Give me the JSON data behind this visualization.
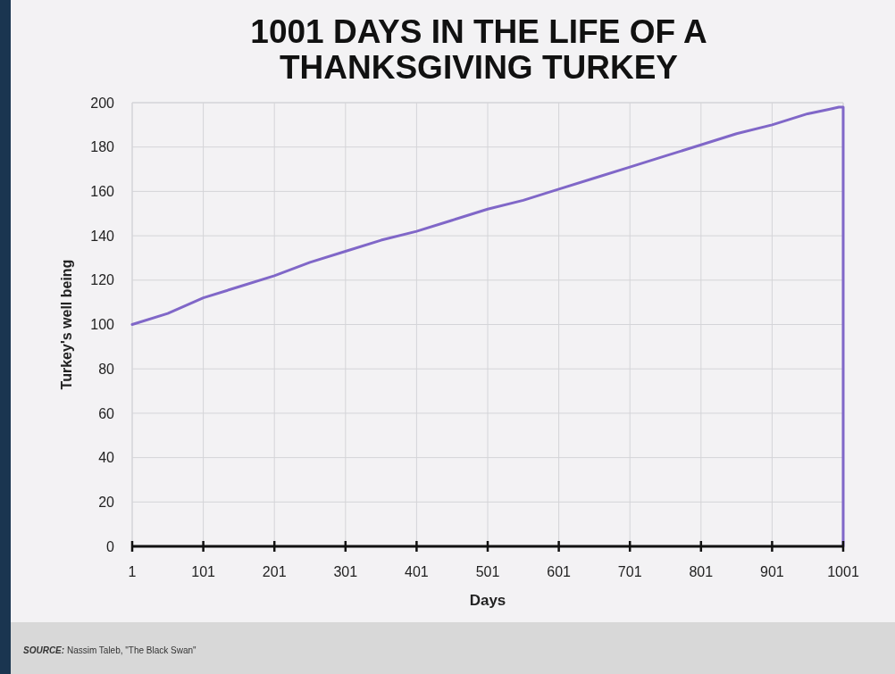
{
  "chart_data": {
    "type": "line",
    "title": "1001 DAYS IN THE LIFE OF A THANKSGIVING TURKEY",
    "xlabel": "Days",
    "ylabel": "Turkey's well being",
    "x": [
      1,
      51,
      101,
      151,
      201,
      251,
      301,
      351,
      401,
      451,
      501,
      551,
      601,
      651,
      701,
      751,
      801,
      851,
      901,
      951,
      981,
      995,
      1001,
      1001
    ],
    "series": [
      {
        "color": "#8067c8",
        "values": [
          100,
          105,
          112,
          117,
          122,
          128,
          133,
          138,
          142,
          147,
          152,
          156,
          161,
          166,
          171,
          176,
          181,
          186,
          190,
          195,
          197,
          198,
          198,
          0
        ]
      }
    ],
    "xlim": [
      1,
      1001
    ],
    "xticks": [
      1,
      101,
      201,
      301,
      401,
      501,
      601,
      701,
      801,
      901,
      1001
    ],
    "ylim": [
      0,
      200
    ],
    "yticks": [
      0,
      20,
      40,
      60,
      80,
      100,
      120,
      140,
      160,
      180,
      200
    ],
    "grid": true,
    "marker": "none",
    "line_style": "solid",
    "annotations": [
      "SOURCE: Nassim Taleb, \"The Black Swan\""
    ]
  }
}
